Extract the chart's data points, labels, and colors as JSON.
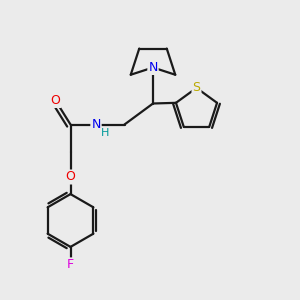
{
  "background_color": "#ebebeb",
  "bond_color": "#1a1a1a",
  "atom_colors": {
    "N": "#0000ee",
    "O": "#ee0000",
    "S": "#bbaa00",
    "F": "#dd00dd",
    "H": "#009999",
    "C": "#1a1a1a"
  },
  "figsize": [
    3.0,
    3.0
  ],
  "dpi": 100,
  "lw": 1.6,
  "fontsize": 9
}
